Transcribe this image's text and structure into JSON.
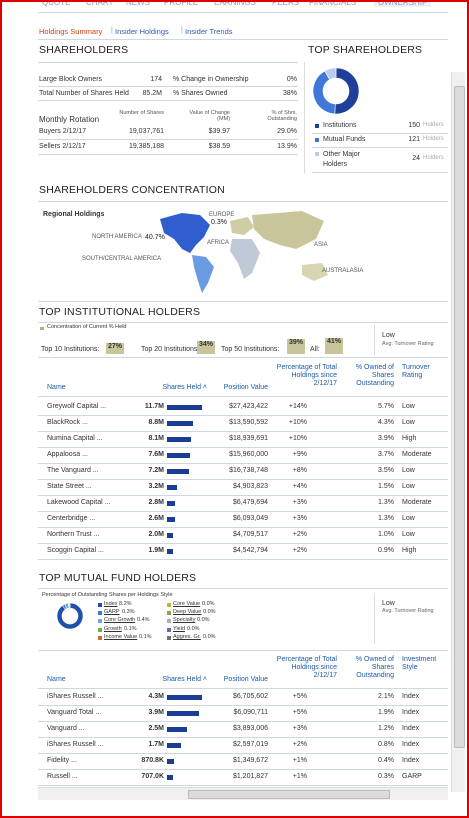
{
  "nav": {
    "tabs": [
      "QUOTE",
      "CHART",
      "NEWS",
      "PROFILE",
      "EARNINGS",
      "PEERS",
      "FINANCIALS",
      "OWNERSHIP"
    ],
    "subtabs": [
      "Holdings Summary",
      "Insider Holdings",
      "Insider Trends"
    ]
  },
  "shareholders": {
    "title": "SHAREHOLDERS",
    "summary": [
      [
        "Large Block Owners",
        "174"
      ],
      [
        "Total Number of Shares Held",
        "85.2M"
      ],
      [
        "% Change in Ownership",
        "0%"
      ],
      [
        "% Shares Owned",
        "38%"
      ]
    ],
    "rotation_header": [
      "Monthly Rotation",
      "Number of Shares",
      "Value of Change (MM)",
      "% of Shrs. Outstanding"
    ],
    "rotation_rows": [
      [
        "Buyers 2/12/17",
        "19,037,761",
        "$39.97",
        "29.0%"
      ],
      [
        "Sellers 2/12/17",
        "19,385,188",
        "$38.59",
        "13.9%"
      ]
    ]
  },
  "top_shareholders": {
    "title": "TOP SHAREHOLDERS",
    "unit": "Holders",
    "items": [
      {
        "name": "Institutions",
        "count": 150,
        "color": "#1f3f9a"
      },
      {
        "name": "Mutual Funds",
        "count": 121,
        "color": "#3f78d8"
      },
      {
        "name": "Other Major Holders",
        "count": 24,
        "color": "#b9cdee"
      }
    ]
  },
  "concentration": {
    "title": "SHAREHOLDERS CONCENTRATION",
    "subtitle": "Regional Holdings",
    "regions": [
      {
        "name": "EUROPE",
        "value_label": "0.3%"
      },
      {
        "name": "NORTH AMERICA",
        "value_label": "40.7%"
      },
      {
        "name": "AFRICA"
      },
      {
        "name": "ASIA"
      },
      {
        "name": "SOUTH/CENTRAL AMERICA"
      },
      {
        "name": "AUSTRALASIA"
      }
    ]
  },
  "institutional": {
    "title": "TOP INSTITUTIONAL HOLDERS",
    "concentration_label": "Concentration of Current % Held",
    "concentration": [
      {
        "label": "Top 10 Institutions:",
        "value": 27,
        "value_label": "27%"
      },
      {
        "label": "Top 20 Institutions:",
        "value": 34,
        "value_label": "34%"
      },
      {
        "label": "Top 50 Institutions:",
        "value": 39,
        "value_label": "39%"
      },
      {
        "label": "All:",
        "value": 41,
        "value_label": "41%"
      }
    ],
    "turnover": {
      "value": "Low",
      "label": "Avg. Turnover Rating"
    },
    "columns": [
      "Name",
      "Shares Held ˄",
      "Position Value",
      "Percentage of Total Holdings since 2/12/17",
      "% Owned of Shares Outstanding",
      "Turnover Rating"
    ],
    "rows": [
      {
        "name": "Greywolf Capital ...",
        "shares": 11.7,
        "shares_label": "11.7M",
        "position_value": "$27,423,422",
        "change": "+14%",
        "owned": "5.7%",
        "rating": "Low"
      },
      {
        "name": "BlackRock ...",
        "shares": 8.8,
        "shares_label": "8.8M",
        "position_value": "$13,590,592",
        "change": "+10%",
        "owned": "4.3%",
        "rating": "Low"
      },
      {
        "name": "Numina Capital ...",
        "shares": 8.1,
        "shares_label": "8.1M",
        "position_value": "$18,939,691",
        "change": "+10%",
        "owned": "3.9%",
        "rating": "High"
      },
      {
        "name": "Appaloosa ...",
        "shares": 7.6,
        "shares_label": "7.6M",
        "position_value": "$15,960,000",
        "change": "+9%",
        "owned": "3.7%",
        "rating": "Moderate"
      },
      {
        "name": "The Vanguard ...",
        "shares": 7.2,
        "shares_label": "7.2M",
        "position_value": "$16,738,748",
        "change": "+8%",
        "owned": "3.5%",
        "rating": "Low"
      },
      {
        "name": "State Street ...",
        "shares": 3.2,
        "shares_label": "3.2M",
        "position_value": "$4,903,823",
        "change": "+4%",
        "owned": "1.5%",
        "rating": "Low"
      },
      {
        "name": "Lakewood Capital ...",
        "shares": 2.8,
        "shares_label": "2.8M",
        "position_value": "$6,479,694",
        "change": "+3%",
        "owned": "1.3%",
        "rating": "Moderate"
      },
      {
        "name": "Centerbridge ...",
        "shares": 2.6,
        "shares_label": "2.6M",
        "position_value": "$6,093,049",
        "change": "+3%",
        "owned": "1.3%",
        "rating": "Low"
      },
      {
        "name": "Northern Trust ...",
        "shares": 2.0,
        "shares_label": "2.0M",
        "position_value": "$4,709,517",
        "change": "+2%",
        "owned": "1.0%",
        "rating": "Low"
      },
      {
        "name": "Scoggin Capital ...",
        "shares": 1.9,
        "shares_label": "1.9M",
        "position_value": "$4,542,794",
        "change": "+2%",
        "owned": "0.9%",
        "rating": "High"
      }
    ]
  },
  "mutual": {
    "title": "TOP MUTUAL FUND HOLDERS",
    "style_title": "Percentage of Outstanding Shares per Holdings Style",
    "styles": [
      {
        "name": "Index",
        "value": 8.2,
        "value_label": "8.2%",
        "color": "#1f4fa8"
      },
      {
        "name": "GARP",
        "value": 0.3,
        "value_label": "0.3%",
        "color": "#3f78d8"
      },
      {
        "name": "Core Growth",
        "value": 0.4,
        "value_label": "0.4%",
        "color": "#7aa2e0"
      },
      {
        "name": "Growth",
        "value": 0.1,
        "value_label": "0.1%",
        "color": "#6bb04a"
      },
      {
        "name": "Income Value",
        "value": 0.1,
        "value_label": "0.1%",
        "color": "#d86a2a"
      },
      {
        "name": "Core Value",
        "value": 0.0,
        "value_label": "0.0%",
        "color": "#c8b040"
      },
      {
        "name": "Deep Value",
        "value": 0.0,
        "value_label": "0.0%",
        "color": "#98a040"
      },
      {
        "name": "Specialty",
        "value": 0.0,
        "value_label": "0.0%",
        "color": "#b0b0b0"
      },
      {
        "name": "Yield",
        "value": 0.0,
        "value_label": "0.0%",
        "color": "#8060a0"
      },
      {
        "name": "Aggres. Gr.",
        "value": 0.0,
        "value_label": "0.0%",
        "color": "#707070"
      }
    ],
    "turnover": {
      "value": "Low",
      "label": "Avg. Turnover Rating"
    },
    "columns": [
      "Name",
      "Shares Held ˄",
      "Position Value",
      "Percentage of Total Holdings since 2/12/17",
      "% Owned of Shares Outstanding",
      "Investment Style"
    ],
    "rows": [
      {
        "name": "iShares Russell ...",
        "shares": 4.3,
        "shares_label": "4.3M",
        "position_value": "$6,705,602",
        "change": "+5%",
        "owned": "2.1%",
        "rating": "Index"
      },
      {
        "name": "Vanguard Total ...",
        "shares": 3.9,
        "shares_label": "3.9M",
        "position_value": "$6,090,711",
        "change": "+5%",
        "owned": "1.9%",
        "rating": "Index"
      },
      {
        "name": "Vanguard ...",
        "shares": 2.5,
        "shares_label": "2.5M",
        "position_value": "$3,893,006",
        "change": "+3%",
        "owned": "1.2%",
        "rating": "Index"
      },
      {
        "name": "iShares Russell ...",
        "shares": 1.7,
        "shares_label": "1.7M",
        "position_value": "$2,597,019",
        "change": "+2%",
        "owned": "0.8%",
        "rating": "Index"
      },
      {
        "name": "Fidelity ...",
        "shares": 0.8708,
        "shares_label": "870.8K",
        "position_value": "$1,349,672",
        "change": "+1%",
        "owned": "0.4%",
        "rating": "Index"
      },
      {
        "name": "Russell ...",
        "shares": 0.707,
        "shares_label": "707.0K",
        "position_value": "$1,201,827",
        "change": "+1%",
        "owned": "0.3%",
        "rating": "GARP"
      }
    ]
  }
}
